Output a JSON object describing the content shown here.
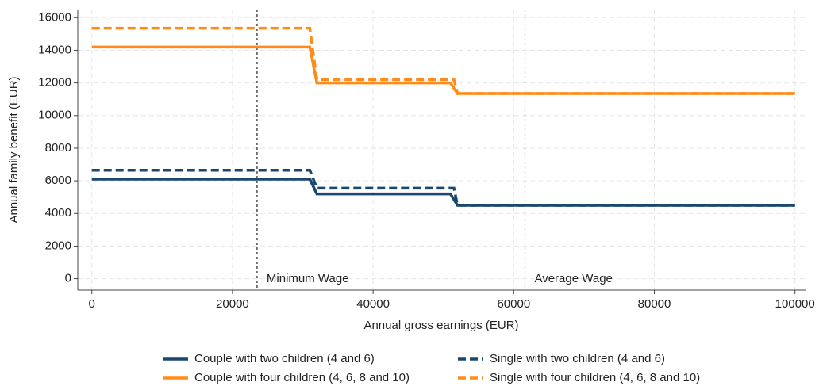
{
  "chart_data": {
    "type": "line",
    "xlabel": "Annual gross earnings (EUR)",
    "ylabel": "Annual family benefit (EUR)",
    "xlim": [
      -2000,
      101500
    ],
    "ylim": [
      -700,
      16500
    ],
    "xticks": [
      0,
      20000,
      40000,
      60000,
      80000,
      100000
    ],
    "yticks": [
      0,
      2000,
      4000,
      6000,
      8000,
      10000,
      12000,
      14000,
      16000
    ],
    "grid": true,
    "legend": "bottom",
    "series": [
      {
        "name": "Couple with two children (4 and 6)",
        "color": "#1a476f",
        "style": "solid",
        "x": [
          0,
          31000,
          32000,
          51000,
          52000,
          100000
        ],
        "values": [
          6100,
          6100,
          5200,
          5200,
          4500,
          4500
        ]
      },
      {
        "name": "Single with two children (4 and 6)",
        "color": "#1a476f",
        "style": "dashed",
        "x": [
          0,
          31000,
          32000,
          51500,
          52000,
          100000
        ],
        "values": [
          6650,
          6650,
          5550,
          5550,
          4500,
          4500
        ]
      },
      {
        "name": "Couple with four children (4, 6, 8 and 10)",
        "color": "#ff8c1a",
        "style": "solid",
        "x": [
          0,
          31000,
          32000,
          51000,
          52000,
          100000
        ],
        "values": [
          14200,
          14200,
          12000,
          12000,
          11350,
          11350
        ]
      },
      {
        "name": "Single with four children (4, 6, 8 and 10)",
        "color": "#ff8c1a",
        "style": "dashed",
        "x": [
          0,
          31000,
          32000,
          51500,
          52000,
          100000
        ],
        "values": [
          15350,
          15350,
          12200,
          12200,
          11350,
          11350
        ]
      }
    ],
    "vlines": [
      {
        "x": 23500,
        "label": "Minimum Wage",
        "color": "#222222"
      },
      {
        "x": 61600,
        "label": "Average Wage",
        "color": "#999999"
      }
    ]
  }
}
